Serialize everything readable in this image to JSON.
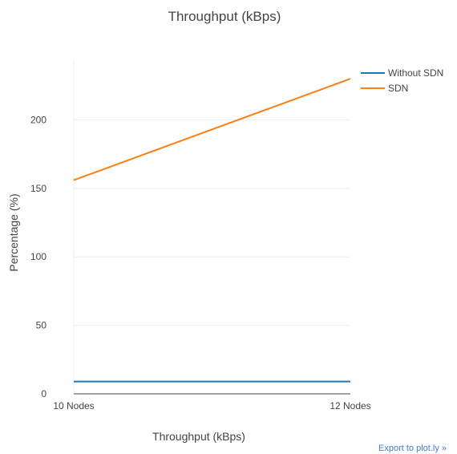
{
  "chart_data": {
    "type": "line",
    "title": "Throughput (kBps)",
    "xlabel": "Throughput (kBps)",
    "ylabel": "Percentage (%)",
    "categories": [
      "10 Nodes",
      "12 Nodes"
    ],
    "ylim": [
      0,
      243
    ],
    "yticks": [
      0,
      50,
      100,
      150,
      200
    ],
    "grid": true,
    "legend_position": "top-right",
    "series": [
      {
        "name": "Without SDN",
        "color": "#1f77b4",
        "values": [
          9,
          9
        ]
      },
      {
        "name": "SDN",
        "color": "#ff7f0e",
        "values": [
          156,
          230
        ]
      }
    ]
  },
  "footer": {
    "export_link": "Export to plot.ly »"
  }
}
